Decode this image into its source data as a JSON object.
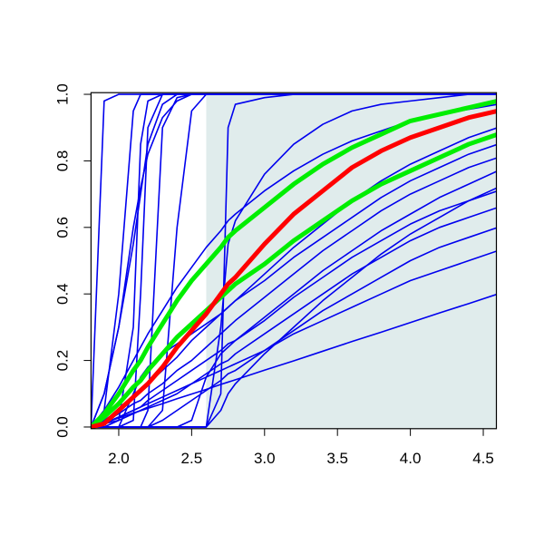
{
  "chart_data": {
    "type": "line",
    "xlim": [
      1.81,
      4.59
    ],
    "ylim": [
      -0.005,
      1.005
    ],
    "xticks": [
      {
        "value": 2,
        "label": "2.0"
      },
      2.5,
      {
        "value": 3,
        "label": "3.0"
      },
      3.5,
      {
        "value": 4,
        "label": "4.0"
      },
      4.5
    ],
    "yticks": [
      {
        "value": 0,
        "label": "0.0"
      },
      0.2,
      0.4,
      0.6,
      0.8,
      {
        "value": 1,
        "label": "1.0"
      }
    ],
    "shaded_xrange": [
      2.6,
      4.6
    ],
    "shade_color": "#e0ecec",
    "x": [
      1.81,
      1.9,
      2.0,
      2.1,
      2.15,
      2.2,
      2.3,
      2.4,
      2.5,
      2.6,
      2.7,
      2.75,
      2.8,
      3.0,
      3.2,
      3.4,
      3.6,
      3.8,
      4.0,
      4.2,
      4.4,
      4.6
    ],
    "series": [
      {
        "color": "#0000ee",
        "values": [
          0,
          0.98,
          1,
          1,
          1,
          1,
          1,
          1,
          1,
          1,
          1,
          1,
          1,
          1,
          1,
          1,
          1,
          1,
          1,
          1,
          1,
          1
        ]
      },
      {
        "color": "#0000ee",
        "values": [
          0,
          0.05,
          0.4,
          0.95,
          1,
          1,
          1,
          1,
          1,
          1,
          1,
          1,
          1,
          1,
          1,
          1,
          1,
          1,
          1,
          1,
          1,
          1
        ]
      },
      {
        "color": "#0000ee",
        "values": [
          0,
          0,
          0.02,
          0.3,
          0.85,
          0.98,
          1,
          1,
          1,
          1,
          1,
          1,
          1,
          1,
          1,
          1,
          1,
          1,
          1,
          1,
          1,
          1
        ]
      },
      {
        "color": "#0000ee",
        "values": [
          0,
          0,
          0,
          0,
          0,
          0.05,
          0.9,
          0.99,
          1,
          1,
          1,
          1,
          1,
          1,
          1,
          1,
          1,
          1,
          1,
          1,
          1,
          1
        ]
      },
      {
        "color": "#0000ee",
        "values": [
          0,
          0.1,
          0.3,
          0.6,
          0.72,
          0.82,
          0.93,
          0.98,
          1,
          1,
          1,
          1,
          1,
          1,
          1,
          1,
          1,
          1,
          1,
          1,
          1,
          1
        ]
      },
      {
        "color": "#0000ee",
        "values": [
          0,
          0,
          0,
          0,
          0,
          0,
          0,
          0,
          0,
          0,
          0.1,
          0.9,
          0.97,
          0.99,
          1,
          1,
          1,
          1,
          1,
          1,
          1,
          1
        ]
      },
      {
        "color": "#0000ee",
        "values": [
          0,
          0,
          0,
          0,
          0,
          0,
          0,
          0,
          0,
          0,
          0.3,
          0.55,
          0.62,
          0.76,
          0.85,
          0.91,
          0.95,
          0.97,
          0.98,
          0.99,
          1,
          1
        ]
      },
      {
        "color": "#0000ee",
        "values": [
          0,
          0.05,
          0.12,
          0.2,
          0.24,
          0.28,
          0.35,
          0.42,
          0.48,
          0.54,
          0.59,
          0.62,
          0.64,
          0.71,
          0.77,
          0.82,
          0.86,
          0.89,
          0.92,
          0.94,
          0.955,
          0.97
        ]
      },
      {
        "color": "#0000ee",
        "values": [
          0,
          0.013,
          0.027,
          0.042,
          0.049,
          0.056,
          0.07,
          0.085,
          0.099,
          0.113,
          0.128,
          0.135,
          0.142,
          0.171,
          0.199,
          0.228,
          0.257,
          0.285,
          0.314,
          0.343,
          0.371,
          0.4
        ]
      },
      {
        "color": "#0000ee",
        "values": [
          0,
          0.01,
          0.03,
          0.05,
          0.06,
          0.07,
          0.09,
          0.11,
          0.13,
          0.15,
          0.17,
          0.18,
          0.19,
          0.23,
          0.28,
          0.32,
          0.36,
          0.4,
          0.44,
          0.47,
          0.5,
          0.53
        ]
      },
      {
        "color": "#0000ee",
        "values": [
          0,
          0,
          0,
          0,
          0,
          0,
          0.02,
          0.05,
          0.08,
          0.11,
          0.14,
          0.16,
          0.17,
          0.23,
          0.29,
          0.35,
          0.4,
          0.45,
          0.5,
          0.54,
          0.57,
          0.6
        ]
      },
      {
        "color": "#0000ee",
        "values": [
          0,
          0.01,
          0.03,
          0.05,
          0.06,
          0.08,
          0.11,
          0.14,
          0.17,
          0.2,
          0.23,
          0.25,
          0.26,
          0.32,
          0.39,
          0.45,
          0.51,
          0.56,
          0.61,
          0.65,
          0.68,
          0.71
        ]
      },
      {
        "color": "#0000ee",
        "values": [
          0,
          0.015,
          0.04,
          0.07,
          0.08,
          0.1,
          0.13,
          0.17,
          0.2,
          0.24,
          0.28,
          0.3,
          0.32,
          0.39,
          0.46,
          0.53,
          0.59,
          0.65,
          0.7,
          0.74,
          0.78,
          0.81
        ]
      },
      {
        "color": "#0000ee",
        "values": [
          0,
          0,
          0,
          0.1,
          0.15,
          0.18,
          0.22,
          0.25,
          0.28,
          0.31,
          0.34,
          0.36,
          0.38,
          0.44,
          0.51,
          0.57,
          0.63,
          0.69,
          0.74,
          0.78,
          0.82,
          0.85
        ]
      },
      {
        "color": "#0000ee",
        "values": [
          0,
          0.02,
          0.05,
          0.09,
          0.11,
          0.13,
          0.17,
          0.21,
          0.26,
          0.3,
          0.34,
          0.36,
          0.38,
          0.46,
          0.54,
          0.61,
          0.68,
          0.74,
          0.79,
          0.83,
          0.87,
          0.9
        ]
      },
      {
        "color": "#0000ee",
        "values": [
          0,
          0,
          0,
          0,
          0,
          0,
          0,
          0,
          0,
          0,
          0.05,
          0.1,
          0.13,
          0.22,
          0.3,
          0.38,
          0.45,
          0.52,
          0.58,
          0.63,
          0.68,
          0.72
        ]
      },
      {
        "color": "#0000ee",
        "values": [
          0,
          0,
          0,
          0,
          0,
          0,
          0,
          0,
          0.02,
          0.15,
          0.22,
          0.24,
          0.26,
          0.33,
          0.4,
          0.47,
          0.53,
          0.59,
          0.64,
          0.69,
          0.73,
          0.77
        ]
      },
      {
        "color": "#0000ee",
        "values": [
          0,
          0,
          0,
          0.02,
          0.4,
          0.9,
          1,
          1,
          1,
          1,
          1,
          1,
          1,
          1,
          1,
          1,
          1,
          1,
          1,
          1,
          1,
          1
        ]
      },
      {
        "color": "#0000ee",
        "values": [
          0,
          0.1,
          0.3,
          0.55,
          0.7,
          0.85,
          0.97,
          1,
          1,
          1,
          1,
          1,
          1,
          1,
          1,
          1,
          1,
          1,
          1,
          1,
          1,
          1
        ]
      },
      {
        "color": "#0000ee",
        "values": [
          0,
          0,
          0,
          0,
          0,
          0,
          0.05,
          0.6,
          0.95,
          1,
          1,
          1,
          1,
          1,
          1,
          1,
          1,
          1,
          1,
          1,
          1,
          1
        ]
      },
      {
        "color": "#0000ee",
        "values": [
          0,
          0.01,
          0.02,
          0.04,
          0.05,
          0.06,
          0.08,
          0.1,
          0.13,
          0.16,
          0.19,
          0.2,
          0.22,
          0.28,
          0.34,
          0.4,
          0.46,
          0.51,
          0.56,
          0.6,
          0.63,
          0.66
        ]
      },
      {
        "color": "#00ee00",
        "values": [
          0,
          0.04,
          0.1,
          0.17,
          0.2,
          0.24,
          0.31,
          0.38,
          0.44,
          0.49,
          0.54,
          0.57,
          0.59,
          0.66,
          0.73,
          0.79,
          0.84,
          0.88,
          0.92,
          0.94,
          0.96,
          0.98
        ]
      },
      {
        "color": "#00ee00",
        "values": [
          0,
          0.03,
          0.07,
          0.12,
          0.14,
          0.17,
          0.22,
          0.27,
          0.31,
          0.35,
          0.39,
          0.41,
          0.43,
          0.49,
          0.56,
          0.62,
          0.68,
          0.73,
          0.77,
          0.81,
          0.85,
          0.88
        ]
      },
      {
        "color": "#ff0000",
        "values": [
          0,
          0.01,
          0.05,
          0.09,
          0.11,
          0.13,
          0.18,
          0.24,
          0.29,
          0.34,
          0.4,
          0.43,
          0.45,
          0.55,
          0.64,
          0.71,
          0.78,
          0.83,
          0.87,
          0.9,
          0.93,
          0.95
        ]
      }
    ]
  }
}
